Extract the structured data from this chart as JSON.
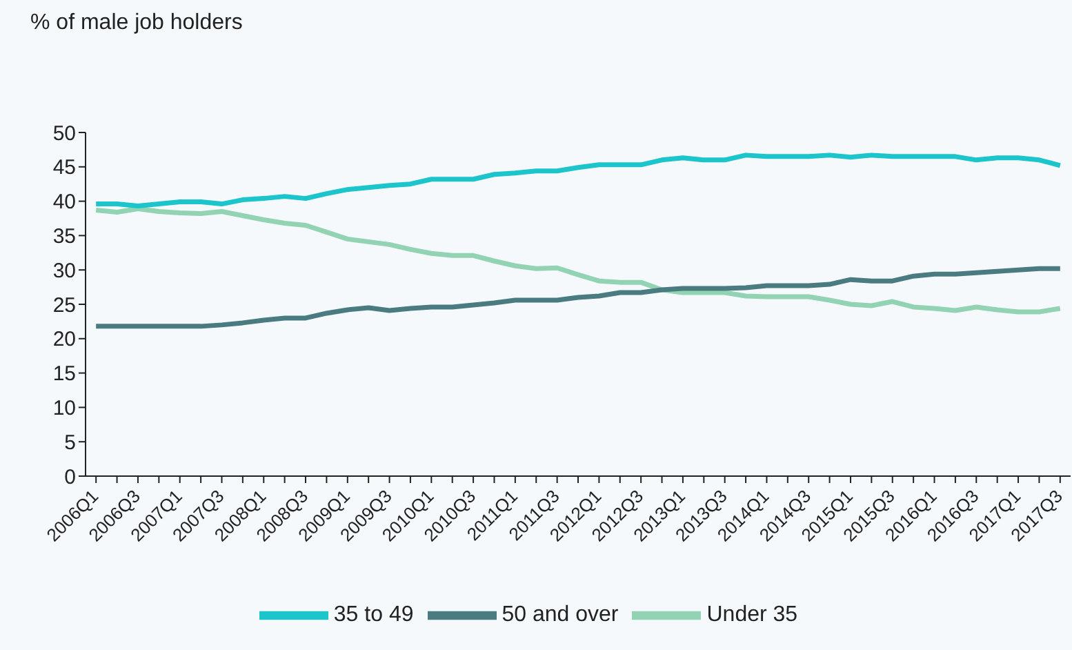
{
  "chart_data": {
    "type": "line",
    "ylabel": "% of male job holders",
    "categories": [
      "2006Q1",
      null,
      "2006Q3",
      null,
      "2007Q1",
      null,
      "2007Q3",
      null,
      "2008Q1",
      null,
      "2008Q3",
      null,
      "2009Q1",
      null,
      "2009Q3",
      null,
      "2010Q1",
      null,
      "2010Q3",
      null,
      "2011Q1",
      null,
      "2011Q3",
      null,
      "2012Q1",
      null,
      "2012Q3",
      null,
      "2013Q1",
      null,
      "2013Q3",
      null,
      "2014Q1",
      null,
      "2014Q3",
      null,
      "2015Q1",
      null,
      "2015Q3",
      null,
      "2016Q1",
      null,
      "2016Q3",
      null,
      "2017Q1",
      null,
      "2017Q3"
    ],
    "series": [
      {
        "name": "Under 35",
        "color": "#92d3b4",
        "values": [
          38.7,
          38.4,
          38.9,
          38.5,
          38.3,
          38.2,
          38.5,
          37.9,
          37.3,
          36.8,
          36.5,
          35.5,
          34.5,
          34.1,
          33.7,
          33.0,
          32.4,
          32.1,
          32.1,
          31.3,
          30.6,
          30.2,
          30.3,
          29.3,
          28.4,
          28.2,
          28.2,
          27.1,
          26.7,
          26.7,
          26.7,
          26.2,
          26.1,
          26.1,
          26.1,
          25.6,
          25.0,
          24.8,
          25.4,
          24.6,
          24.4,
          24.1,
          24.6,
          24.2,
          23.9,
          23.9,
          24.4
        ]
      },
      {
        "name": "35 to 49",
        "color": "#1cc5cc",
        "values": [
          39.6,
          39.6,
          39.3,
          39.6,
          39.9,
          39.9,
          39.6,
          40.2,
          40.4,
          40.7,
          40.4,
          41.1,
          41.7,
          42.0,
          42.3,
          42.5,
          43.2,
          43.2,
          43.2,
          43.9,
          44.1,
          44.4,
          44.4,
          44.9,
          45.3,
          45.3,
          45.3,
          46.0,
          46.3,
          46.0,
          46.0,
          46.7,
          46.5,
          46.5,
          46.5,
          46.7,
          46.4,
          46.7,
          46.5,
          46.5,
          46.5,
          46.5,
          46.0,
          46.3,
          46.3,
          46.0,
          45.2
        ]
      },
      {
        "name": "50 and over",
        "color": "#4a7b80",
        "values": [
          21.8,
          21.8,
          21.8,
          21.8,
          21.8,
          21.8,
          22.0,
          22.3,
          22.7,
          23.0,
          23.0,
          23.7,
          24.2,
          24.5,
          24.1,
          24.4,
          24.6,
          24.6,
          24.9,
          25.2,
          25.6,
          25.6,
          25.6,
          26.0,
          26.2,
          26.7,
          26.7,
          27.1,
          27.3,
          27.3,
          27.3,
          27.4,
          27.7,
          27.7,
          27.7,
          27.9,
          28.6,
          28.4,
          28.4,
          29.1,
          29.4,
          29.4,
          29.6,
          29.8,
          30.0,
          30.2,
          30.2
        ]
      }
    ],
    "ylim": [
      0,
      50
    ],
    "yticks": [
      0,
      5,
      10,
      15,
      20,
      25,
      30,
      35,
      40,
      45,
      50
    ],
    "grid": false,
    "legend": "bottom",
    "marker": "none",
    "line_style": "solid"
  }
}
